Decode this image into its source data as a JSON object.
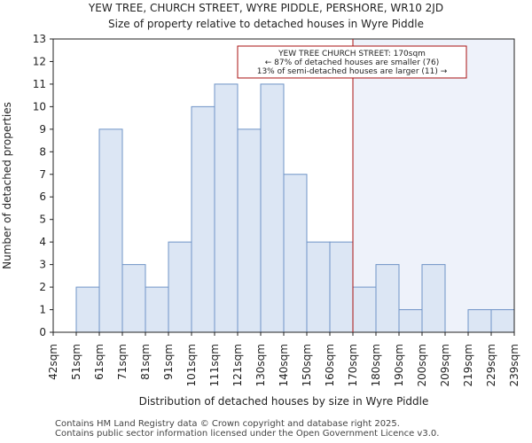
{
  "header": {
    "title": "YEW TREE, CHURCH STREET, WYRE PIDDLE, PERSHORE, WR10 2JD",
    "subtitle": "Size of property relative to detached houses in Wyre Piddle"
  },
  "footer": {
    "line1": "Contains HM Land Registry data © Crown copyright and database right 2025.",
    "line2": "Contains public sector information licensed under the Open Government Licence v3.0."
  },
  "chart_data": {
    "type": "bar",
    "title": "YEW TREE, CHURCH STREET, WYRE PIDDLE, PERSHORE, WR10 2JD",
    "subtitle": "Size of property relative to detached houses in Wyre Piddle",
    "xlabel": "Distribution of detached houses by size in Wyre Piddle",
    "ylabel": "Number of detached properties",
    "bin_edges": [
      "42sqm",
      "51sqm",
      "61sqm",
      "71sqm",
      "81sqm",
      "91sqm",
      "101sqm",
      "111sqm",
      "121sqm",
      "130sqm",
      "140sqm",
      "150sqm",
      "160sqm",
      "170sqm",
      "180sqm",
      "190sqm",
      "200sqm",
      "209sqm",
      "219sqm",
      "229sqm",
      "239sqm"
    ],
    "values": [
      0,
      2,
      9,
      3,
      2,
      4,
      10,
      11,
      9,
      11,
      7,
      4,
      4,
      2,
      3,
      1,
      3,
      0,
      1,
      1
    ],
    "ylim": [
      0,
      13
    ],
    "yticks": [
      0,
      1,
      2,
      3,
      4,
      5,
      6,
      7,
      8,
      9,
      10,
      11,
      12,
      13
    ],
    "marker": {
      "position_edge": "170sqm",
      "label_lines": [
        "YEW TREE CHURCH STREET: 170sqm",
        "← 87% of detached houses are smaller (76)",
        "13% of semi-detached houses are larger (11) →"
      ]
    },
    "colors": {
      "bar_fill": "#dce6f4",
      "bar_stroke": "#6f94c7",
      "marker_line": "#aa1111",
      "shade": "#eef2fa",
      "axis": "#222222"
    },
    "grid": false,
    "legend": "none"
  }
}
